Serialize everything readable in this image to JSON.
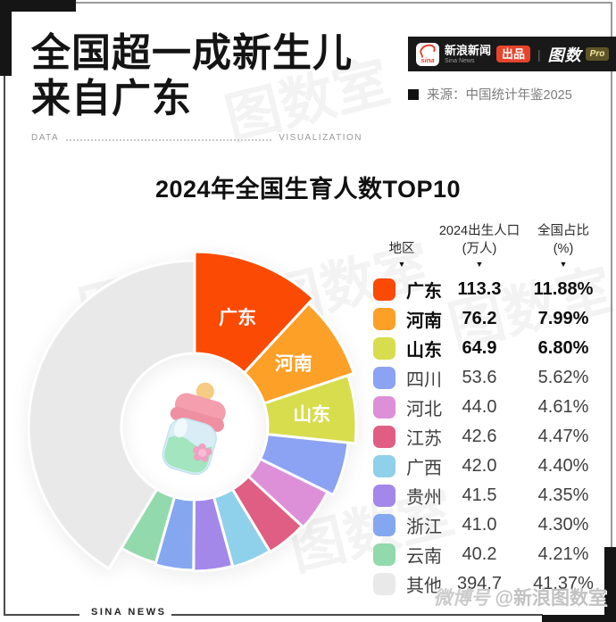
{
  "header": {
    "title_line1": "全国超一成新生儿",
    "title_line2": "来自广东",
    "data_label": "DATA",
    "visualization_label": "VISUALIZATION",
    "source_text": "来源：中国统计年鉴2025"
  },
  "brand": {
    "sina_logo": "sina",
    "news_name": "新浪新闻",
    "news_name_en": "Sina News",
    "produce_badge": "出品",
    "divider": "|",
    "tushu_logo": "图数",
    "pro_badge": "Pro"
  },
  "chart": {
    "title": "2024年全国生育人数TOP10"
  },
  "table": {
    "col1_header": "地区",
    "col2_header_line1": "2024出生人口",
    "col2_header_line2": "(万人)",
    "col3_header_line1": "全国占比",
    "col3_header_line2": "(%)",
    "sort_icon": "▼",
    "rows": [
      {
        "region": "广东",
        "value": "113.3",
        "share": "11.88%",
        "color": "#FA4A03",
        "bold": true
      },
      {
        "region": "河南",
        "value": "76.2",
        "share": "7.99%",
        "color": "#FCA028",
        "bold": true
      },
      {
        "region": "山东",
        "value": "64.9",
        "share": "6.80%",
        "color": "#D7DD4D",
        "bold": true
      },
      {
        "region": "四川",
        "value": "53.6",
        "share": "5.62%",
        "color": "#8CA2F2",
        "bold": false
      },
      {
        "region": "河北",
        "value": "44.0",
        "share": "4.61%",
        "color": "#DD90D7",
        "bold": false
      },
      {
        "region": "江苏",
        "value": "42.6",
        "share": "4.47%",
        "color": "#E05E83",
        "bold": false
      },
      {
        "region": "广西",
        "value": "42.0",
        "share": "4.40%",
        "color": "#8FD0EA",
        "bold": false
      },
      {
        "region": "贵州",
        "value": "41.5",
        "share": "4.35%",
        "color": "#A488E9",
        "bold": false
      },
      {
        "region": "浙江",
        "value": "41.0",
        "share": "4.30%",
        "color": "#85A7F0",
        "bold": false
      },
      {
        "region": "云南",
        "value": "40.2",
        "share": "4.21%",
        "color": "#92D9AB",
        "bold": false
      },
      {
        "region": "其他",
        "value": "394.7",
        "share": "41.37%",
        "color": "#E9E9E9",
        "bold": false
      }
    ]
  },
  "chart_data": {
    "type": "pie",
    "subtype": "rose-donut",
    "title": "2024年全国生育人数TOP10",
    "unit": "万人",
    "categories": [
      "广东",
      "河南",
      "山东",
      "四川",
      "河北",
      "江苏",
      "广西",
      "贵州",
      "浙江",
      "云南",
      "其他"
    ],
    "values": [
      113.3,
      76.2,
      64.9,
      53.6,
      44.0,
      42.6,
      42.0,
      41.5,
      41.0,
      40.2,
      394.7
    ],
    "percentages": [
      11.88,
      7.99,
      6.8,
      5.62,
      4.61,
      4.47,
      4.4,
      4.35,
      4.3,
      4.21,
      41.37
    ],
    "colors": [
      "#FA4A03",
      "#FCA028",
      "#D7DD4D",
      "#8CA2F2",
      "#DD90D7",
      "#E05E83",
      "#8FD0EA",
      "#A488E9",
      "#85A7F0",
      "#92D9AB",
      "#E9E9E9"
    ],
    "outer_radii": [
      196,
      188,
      181,
      173,
      166,
      164,
      163,
      162,
      161,
      159,
      186
    ],
    "inner_radius": 82,
    "start_angle_deg": 0,
    "direction": "clockwise",
    "in_slice_labels": [
      "广东",
      "河南",
      "山东"
    ],
    "label_radius": 132,
    "legend_position": "right-table",
    "center_icon": "baby-bottle"
  },
  "footer": {
    "sina_news": "SINA NEWS",
    "handle_prefix": "微博号",
    "handle": "@新浪图数室"
  },
  "watermark_text": "图数室"
}
